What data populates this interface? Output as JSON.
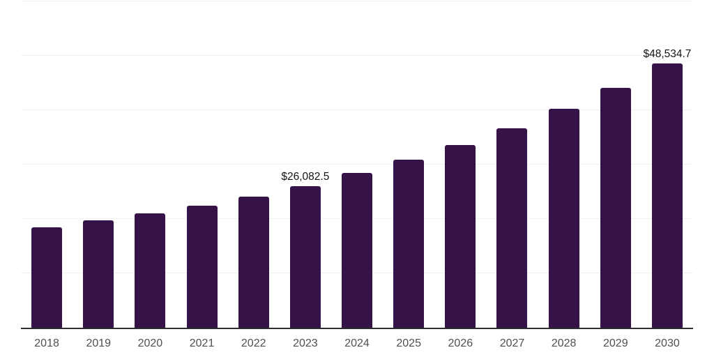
{
  "chart_data": {
    "type": "bar",
    "title": "",
    "xlabel": "",
    "ylabel": "",
    "categories": [
      "2018",
      "2019",
      "2020",
      "2021",
      "2022",
      "2023",
      "2024",
      "2025",
      "2026",
      "2027",
      "2028",
      "2029",
      "2030"
    ],
    "values": [
      18400,
      19700,
      21000,
      22400,
      24150,
      26082.5,
      28400,
      30850,
      33600,
      36700,
      40200,
      44150,
      48534.7
    ],
    "data_labels": [
      "",
      "",
      "",
      "",
      "",
      "$26,082.5",
      "",
      "",
      "",
      "",
      "",
      "",
      "$48,534.7"
    ],
    "ylim": [
      0,
      60000
    ],
    "gridline_values": [
      10000,
      20000,
      30000,
      40000,
      50000,
      60000
    ],
    "grid": true,
    "legend": false,
    "y_tick_labels_shown": false,
    "bar_color": "#351349",
    "axis_line_color": "#2d2d2d",
    "gridline_color": "#efefef",
    "tick_label_color": "#4f4f4f",
    "data_label_color": "#141414"
  }
}
